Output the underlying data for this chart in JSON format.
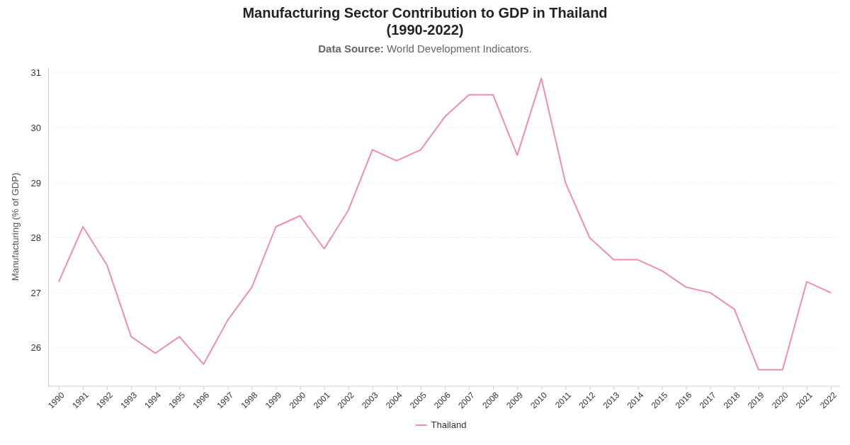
{
  "chart_data": {
    "type": "line",
    "title": "Manufacturing Sector Contribution to GDP in Thailand\n(1990-2022)",
    "subtitle": "Data Source: World Development Indicators.",
    "ylabel": "Manufacturing (% of GDP)",
    "categories": [
      "1990",
      "1991",
      "1992",
      "1993",
      "1994",
      "1995",
      "1996",
      "1997",
      "1998",
      "1999",
      "2000",
      "2001",
      "2002",
      "2003",
      "2004",
      "2005",
      "2006",
      "2007",
      "2008",
      "2009",
      "2010",
      "2011",
      "2012",
      "2013",
      "2014",
      "2015",
      "2016",
      "2017",
      "2018",
      "2019",
      "2020",
      "2021",
      "2022"
    ],
    "series": [
      {
        "name": "Thailand",
        "color": "#f28cb1",
        "values": [
          27.2,
          28.2,
          27.5,
          26.2,
          25.9,
          26.2,
          25.7,
          26.5,
          27.1,
          28.2,
          28.4,
          27.8,
          28.5,
          29.6,
          29.4,
          29.6,
          30.2,
          30.6,
          30.6,
          29.5,
          30.9,
          29.0,
          28.0,
          27.6,
          27.6,
          27.4,
          27.1,
          27.0,
          26.7,
          25.6,
          25.6,
          27.2,
          27.0
        ]
      }
    ],
    "ylim": [
      25.3,
      31.1
    ],
    "yticks": [
      26,
      27,
      28,
      29,
      30,
      31
    ],
    "grid": "y",
    "legend": "bottom",
    "marker": "none",
    "line_style": "solid"
  }
}
